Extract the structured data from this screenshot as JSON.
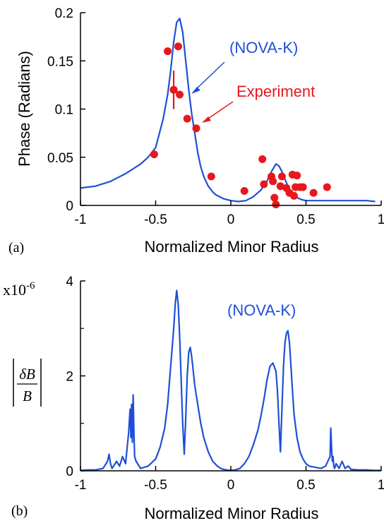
{
  "chart_data": [
    {
      "id": "a",
      "type": "line",
      "panel_label": "(a)",
      "xlabel": "Normalized Minor Radius",
      "ylabel": "Phase (Radians)",
      "xlim": [
        -1,
        1
      ],
      "ylim": [
        0,
        0.2
      ],
      "xticks": [
        "-1",
        "-0.5",
        "0",
        "0.5",
        "1"
      ],
      "xtick_values": [
        -1,
        -0.5,
        0,
        0.5,
        1
      ],
      "yticks": [
        "0",
        "0.05",
        "0.1",
        "0.15",
        "0.2"
      ],
      "ytick_values": [
        0,
        0.05,
        0.1,
        0.15,
        0.2
      ],
      "grid": false,
      "series": [
        {
          "name": "(NOVA-K)",
          "kind": "line",
          "color": "#1f4fd6",
          "x": [
            -1,
            -0.9,
            -0.8,
            -0.7,
            -0.6,
            -0.55,
            -0.5,
            -0.45,
            -0.42,
            -0.4,
            -0.38,
            -0.36,
            -0.34,
            -0.32,
            -0.3,
            -0.28,
            -0.26,
            -0.24,
            -0.22,
            -0.2,
            -0.18,
            -0.15,
            -0.12,
            -0.1,
            -0.05,
            0,
            0.05,
            0.1,
            0.15,
            0.2,
            0.24,
            0.27,
            0.3,
            0.32,
            0.34,
            0.36,
            0.38,
            0.4,
            0.43,
            0.47,
            0.5,
            0.6,
            0.7,
            0.8,
            0.9,
            0.96
          ],
          "y": [
            0.018,
            0.02,
            0.025,
            0.033,
            0.043,
            0.05,
            0.06,
            0.09,
            0.115,
            0.14,
            0.17,
            0.19,
            0.194,
            0.18,
            0.15,
            0.12,
            0.095,
            0.075,
            0.055,
            0.04,
            0.03,
            0.02,
            0.014,
            0.011,
            0.007,
            0.005,
            0.004,
            0.005,
            0.009,
            0.016,
            0.025,
            0.035,
            0.043,
            0.041,
            0.035,
            0.027,
            0.02,
            0.014,
            0.009,
            0.006,
            0.005,
            0.005,
            0.005,
            0.005,
            0.005,
            0.004
          ]
        },
        {
          "name": "Experiment",
          "kind": "scatter",
          "color": "#e8171c",
          "x": [
            -0.51,
            -0.42,
            -0.38,
            -0.35,
            -0.34,
            -0.29,
            -0.23,
            -0.13,
            0.09,
            0.21,
            0.22,
            0.27,
            0.28,
            0.29,
            0.3,
            0.33,
            0.34,
            0.37,
            0.39,
            0.41,
            0.42,
            0.43,
            0.44,
            0.46,
            0.48,
            0.55,
            0.64
          ],
          "y": [
            0.053,
            0.16,
            0.12,
            0.165,
            0.115,
            0.09,
            0.08,
            0.03,
            0.015,
            0.048,
            0.022,
            0.03,
            0.025,
            0.008,
            0.001,
            0.02,
            0.03,
            0.018,
            0.013,
            0.032,
            0.01,
            0.019,
            0.031,
            0.019,
            0.019,
            0.013,
            0.019
          ],
          "error_bar": {
            "x": -0.38,
            "low": 0.1,
            "high": 0.14
          }
        }
      ],
      "annotations": [
        {
          "text": "(NOVA-K)",
          "color": "#1f4fd6",
          "points_to": [
            -0.3,
            0.12
          ]
        },
        {
          "text": "Experiment",
          "color": "#e8171c",
          "points_to": [
            -0.22,
            0.08
          ]
        }
      ]
    },
    {
      "id": "b",
      "type": "line",
      "panel_label": "(b)",
      "xlabel": "Normalized Minor Radius",
      "ylabel": "|δB/B|",
      "ylabel_numerator": "δB",
      "ylabel_denominator": "B",
      "scale_label": "x10",
      "scale_exponent": "-6",
      "xlim": [
        -1,
        1
      ],
      "ylim": [
        0,
        4
      ],
      "xticks": [
        "-1",
        "-0.5",
        "0",
        "0.5",
        "1"
      ],
      "xtick_values": [
        -1,
        -0.5,
        0,
        0.5,
        1
      ],
      "yticks": [
        "0",
        "2",
        "4"
      ],
      "ytick_values": [
        0,
        2,
        4
      ],
      "minor_ytick_values": [
        1,
        3
      ],
      "grid": false,
      "series": [
        {
          "name": "(NOVA-K)",
          "kind": "line",
          "color": "#1f4fd6",
          "x": [
            -1,
            -0.95,
            -0.9,
            -0.85,
            -0.82,
            -0.81,
            -0.8,
            -0.79,
            -0.78,
            -0.76,
            -0.74,
            -0.72,
            -0.7,
            -0.68,
            -0.67,
            -0.665,
            -0.66,
            -0.655,
            -0.65,
            -0.645,
            -0.64,
            -0.63,
            -0.6,
            -0.55,
            -0.5,
            -0.47,
            -0.44,
            -0.42,
            -0.4,
            -0.38,
            -0.37,
            -0.36,
            -0.35,
            -0.34,
            -0.33,
            -0.32,
            -0.31,
            -0.3,
            -0.29,
            -0.28,
            -0.27,
            -0.26,
            -0.25,
            -0.24,
            -0.22,
            -0.2,
            -0.18,
            -0.15,
            -0.12,
            -0.09,
            -0.06,
            -0.03,
            0,
            0.03,
            0.06,
            0.09,
            0.12,
            0.15,
            0.18,
            0.2,
            0.22,
            0.24,
            0.26,
            0.28,
            0.3,
            0.31,
            0.32,
            0.33,
            0.34,
            0.35,
            0.36,
            0.37,
            0.38,
            0.39,
            0.4,
            0.41,
            0.42,
            0.44,
            0.46,
            0.48,
            0.5,
            0.52,
            0.55,
            0.6,
            0.63,
            0.66,
            0.665,
            0.67,
            0.675,
            0.68,
            0.685,
            0.69,
            0.7,
            0.72,
            0.74,
            0.76,
            0.78,
            0.8,
            0.85,
            0.9,
            0.95,
            1
          ],
          "y": [
            0.01,
            0.02,
            0.02,
            0.05,
            0.2,
            0.35,
            0.15,
            0.05,
            0.1,
            0.2,
            0.1,
            0.3,
            0.15,
            0.8,
            1.3,
            0.7,
            1.4,
            0.6,
            1.6,
            0.9,
            0.3,
            0.2,
            0.05,
            0.1,
            0.25,
            0.5,
            0.9,
            1.4,
            2.2,
            3.0,
            3.5,
            3.8,
            3.5,
            2.8,
            1.9,
            1.0,
            0.35,
            1.1,
            2.0,
            2.5,
            2.6,
            2.4,
            2.1,
            1.8,
            1.4,
            1.0,
            0.7,
            0.4,
            0.2,
            0.1,
            0.04,
            0.02,
            0.01,
            0.02,
            0.05,
            0.15,
            0.3,
            0.55,
            0.85,
            1.15,
            1.5,
            1.9,
            2.2,
            2.27,
            2.1,
            1.7,
            1.0,
            0.4,
            1.3,
            2.2,
            2.7,
            2.9,
            2.95,
            2.7,
            2.2,
            1.7,
            1.2,
            0.7,
            0.4,
            0.25,
            0.15,
            0.1,
            0.08,
            0.05,
            0.1,
            0.3,
            0.9,
            0.5,
            0.2,
            0.3,
            0.1,
            0.05,
            0.15,
            0.05,
            0.2,
            0.05,
            0.1,
            0.03,
            0.02,
            0.02,
            0.01,
            0.01
          ]
        }
      ],
      "annotations": [
        {
          "text": "(NOVA-K)",
          "color": "#1f4fd6"
        }
      ]
    }
  ]
}
